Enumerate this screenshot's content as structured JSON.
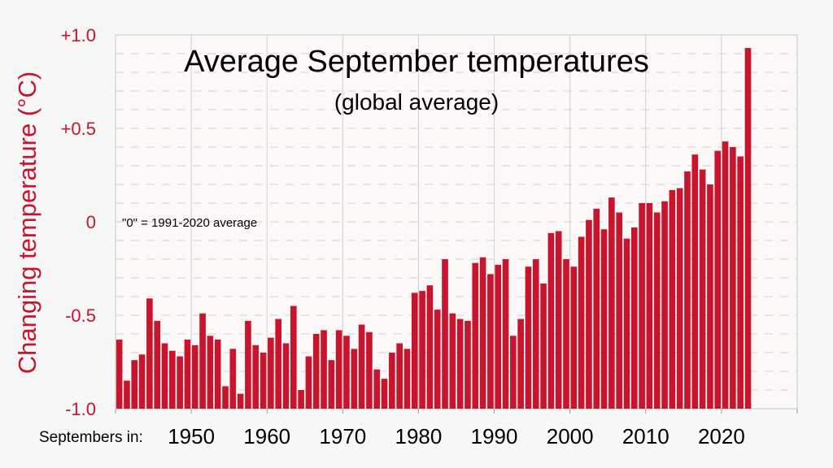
{
  "chart_data": {
    "type": "bar",
    "title": "Average September temperatures",
    "subtitle": "(global average)",
    "ylabel": "Changing temperature (°C)",
    "x_axis_prefix": "Septembers in:",
    "annotation": "\"0\" = 1991-2020 average",
    "ylim": [
      -1.0,
      1.0
    ],
    "xlim": [
      1940,
      2030
    ],
    "yticks": [
      {
        "value": 1.0,
        "label": "+1.0"
      },
      {
        "value": 0.5,
        "label": "+0.5"
      },
      {
        "value": 0.0,
        "label": "0"
      },
      {
        "value": -0.5,
        "label": "-0.5"
      },
      {
        "value": -1.0,
        "label": "-1.0"
      }
    ],
    "xticks": [
      1950,
      1960,
      1970,
      1980,
      1990,
      2000,
      2010,
      2020
    ],
    "grid": true,
    "colors": {
      "bar": "#c8142d",
      "axis_text": "#c8142d",
      "background": "#f7f7f7",
      "plot_background": "#fcf8f8"
    },
    "years": [
      1940,
      1941,
      1942,
      1943,
      1944,
      1945,
      1946,
      1947,
      1948,
      1949,
      1950,
      1951,
      1952,
      1953,
      1954,
      1955,
      1956,
      1957,
      1958,
      1959,
      1960,
      1961,
      1962,
      1963,
      1964,
      1965,
      1966,
      1967,
      1968,
      1969,
      1970,
      1971,
      1972,
      1973,
      1974,
      1975,
      1976,
      1977,
      1978,
      1979,
      1980,
      1981,
      1982,
      1983,
      1984,
      1985,
      1986,
      1987,
      1988,
      1989,
      1990,
      1991,
      1992,
      1993,
      1994,
      1995,
      1996,
      1997,
      1998,
      1999,
      2000,
      2001,
      2002,
      2003,
      2004,
      2005,
      2006,
      2007,
      2008,
      2009,
      2010,
      2011,
      2012,
      2013,
      2014,
      2015,
      2016,
      2017,
      2018,
      2019,
      2020,
      2021,
      2022,
      2023
    ],
    "values": [
      -0.63,
      -0.85,
      -0.74,
      -0.71,
      -0.41,
      -0.53,
      -0.65,
      -0.69,
      -0.72,
      -0.63,
      -0.66,
      -0.49,
      -0.61,
      -0.63,
      -0.88,
      -0.68,
      -0.92,
      -0.53,
      -0.66,
      -0.7,
      -0.62,
      -0.52,
      -0.65,
      -0.45,
      -0.9,
      -0.72,
      -0.6,
      -0.58,
      -0.74,
      -0.58,
      -0.61,
      -0.68,
      -0.55,
      -0.59,
      -0.79,
      -0.84,
      -0.7,
      -0.65,
      -0.68,
      -0.38,
      -0.37,
      -0.34,
      -0.47,
      -0.2,
      -0.49,
      -0.52,
      -0.53,
      -0.22,
      -0.19,
      -0.28,
      -0.23,
      -0.2,
      -0.61,
      -0.52,
      -0.24,
      -0.2,
      -0.33,
      -0.06,
      -0.05,
      -0.2,
      -0.24,
      -0.08,
      0.01,
      0.07,
      -0.04,
      0.13,
      0.05,
      -0.09,
      -0.03,
      0.1,
      0.1,
      0.05,
      0.11,
      0.17,
      0.18,
      0.27,
      0.36,
      0.28,
      0.2,
      0.38,
      0.43,
      0.4,
      0.35,
      0.93
    ]
  }
}
